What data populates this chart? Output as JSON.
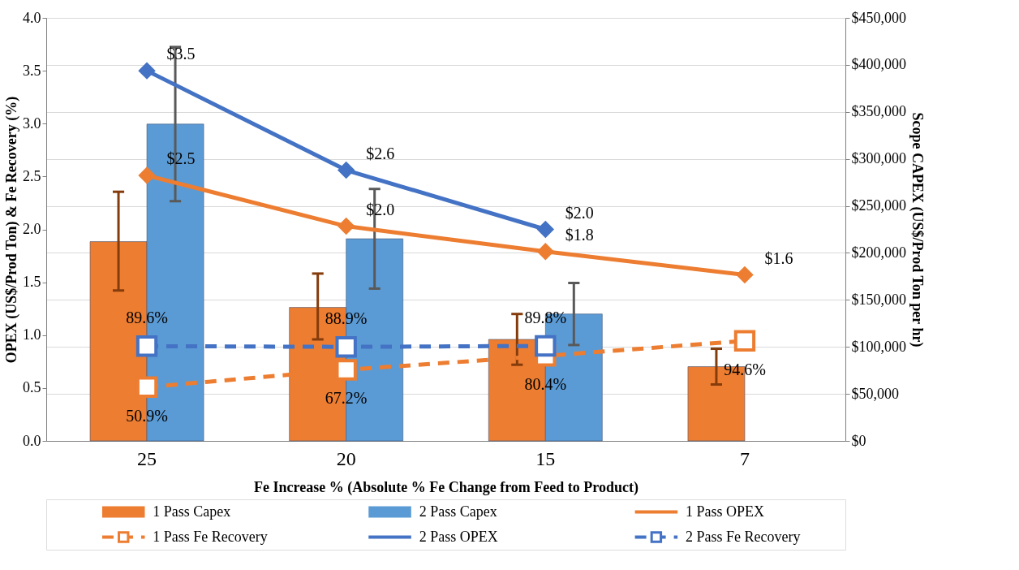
{
  "chart_data": {
    "type": "bar",
    "xlabel": "Fe Increase % (Absolute % Fe Change from Feed to Product)",
    "ylabel": "OPEX (US$/Prod Ton) & Fe Recovery (%)",
    "y2label": "Scope CAPEX (US$/Prod Ton per hr)",
    "categories": [
      "25",
      "20",
      "15",
      "7"
    ],
    "ylim": [
      0,
      4
    ],
    "yticks": [
      {
        "value": 0,
        "label": "0.0"
      },
      {
        "value": 0.5,
        "label": "0.5"
      },
      {
        "value": 1,
        "label": "1.0"
      },
      {
        "value": 1.5,
        "label": "1.5"
      },
      {
        "value": 2,
        "label": "2.0"
      },
      {
        "value": 2.5,
        "label": "2.5"
      },
      {
        "value": 3,
        "label": "3.0"
      },
      {
        "value": 3.5,
        "label": "3.5"
      },
      {
        "value": 4,
        "label": "4.0"
      }
    ],
    "y2lim": [
      0,
      450000
    ],
    "y2ticks": [
      {
        "value": 0,
        "label": "$0"
      },
      {
        "value": 50000,
        "label": "$50,000"
      },
      {
        "value": 100000,
        "label": "$100,000"
      },
      {
        "value": 150000,
        "label": "$150,000"
      },
      {
        "value": 200000,
        "label": "$200,000"
      },
      {
        "value": 250000,
        "label": "$250,000"
      },
      {
        "value": 300000,
        "label": "$300,000"
      },
      {
        "value": 350000,
        "label": "$350,000"
      },
      {
        "value": 400000,
        "label": "$400,000"
      },
      {
        "value": 450000,
        "label": "$450,000"
      }
    ],
    "grid": "y",
    "legend": "bottom",
    "series": [
      {
        "name": "1 Pass Capex",
        "axis": "y2",
        "color": "#ed7d31",
        "values": [
          212000,
          142000,
          108000,
          79000
        ],
        "errors": [
          [
            160000,
            265000
          ],
          [
            108000,
            178000
          ],
          [
            81000,
            135000
          ],
          [
            60000,
            98000
          ]
        ]
      },
      {
        "name": "2 Pass Capex",
        "axis": "y2",
        "color": "#5b9bd5",
        "values": [
          337000,
          215000,
          135000,
          null
        ],
        "errors": [
          [
            255000,
            419000
          ],
          [
            162000,
            268000
          ],
          [
            102000,
            168000
          ],
          null
        ]
      },
      {
        "name": "1 Pass OPEX",
        "type": "line",
        "color": "#ed7d31",
        "marker": "diamond",
        "line_style": "solid",
        "values": [
          2.51,
          2.03,
          1.79,
          1.57
        ],
        "value_labels": [
          "$2.5",
          "$2.0",
          "$1.8",
          "$1.6"
        ]
      },
      {
        "name": "1 Pass Fe Recovery",
        "type": "line",
        "color": "#ed7d31",
        "marker": "square",
        "line_style": "dashed",
        "values": [
          0.509,
          0.672,
          0.804,
          0.946
        ],
        "value_labels": [
          "50.9%",
          "67.2%",
          "80.4%",
          "94.6%"
        ]
      },
      {
        "name": "2 Pass OPEX",
        "type": "line",
        "color": "#4472c4",
        "marker": "diamond",
        "line_style": "solid",
        "values": [
          3.5,
          2.56,
          2.0,
          null
        ],
        "value_labels": [
          "$3.5",
          "$2.6",
          "$2.0",
          null
        ]
      },
      {
        "name": "2 Pass Fe Recovery",
        "type": "line",
        "color": "#4472c4",
        "marker": "square",
        "line_style": "dashed",
        "values": [
          0.896,
          0.889,
          0.898,
          null
        ],
        "value_labels": [
          "89.6%",
          "88.9%",
          "89.8%",
          null
        ]
      }
    ]
  }
}
